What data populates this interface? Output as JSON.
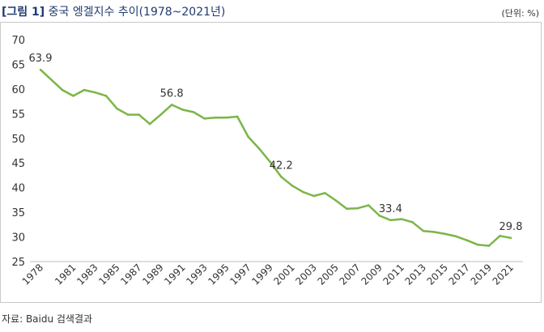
{
  "header": {
    "figure_label": "[그림 1]",
    "title": "중국 엥겔지수 추이(1978~2021년)",
    "unit": "(단위: %)"
  },
  "footer": {
    "source": "자료: Baidu 검색결과"
  },
  "colors": {
    "line": "#7ab648",
    "axis": "#bfbfbf",
    "text": "#333333",
    "title": "#1f3a70"
  },
  "chart_data": {
    "type": "line",
    "title": "",
    "xlabel": "",
    "ylabel": "",
    "ylim": [
      25,
      70
    ],
    "yticks": [
      25,
      30,
      35,
      40,
      45,
      50,
      55,
      60,
      65,
      70
    ],
    "xticks": [
      "1978",
      "1981",
      "1983",
      "1985",
      "1987",
      "1989",
      "1991",
      "1993",
      "1995",
      "1997",
      "1999",
      "2001",
      "2003",
      "2005",
      "2007",
      "2009",
      "2011",
      "2013",
      "2015",
      "2017",
      "2019",
      "2021"
    ],
    "grid": false,
    "legend": "none",
    "series": [
      {
        "values": [
          [
            1978,
            63.9
          ],
          [
            1980,
            59.8
          ],
          [
            1981,
            58.6
          ],
          [
            1982,
            59.8
          ],
          [
            1983,
            59.3
          ],
          [
            1984,
            58.6
          ],
          [
            1985,
            56.0
          ],
          [
            1986,
            54.8
          ],
          [
            1987,
            54.8
          ],
          [
            1988,
            52.9
          ],
          [
            1989,
            54.8
          ],
          [
            1990,
            56.8
          ],
          [
            1991,
            55.8
          ],
          [
            1992,
            55.3
          ],
          [
            1993,
            54.0
          ],
          [
            1994,
            54.2
          ],
          [
            1995,
            54.2
          ],
          [
            1996,
            54.4
          ],
          [
            1997,
            50.3
          ],
          [
            1998,
            47.9
          ],
          [
            1999,
            45.2
          ],
          [
            2000,
            42.2
          ],
          [
            2001,
            40.4
          ],
          [
            2002,
            39.1
          ],
          [
            2003,
            38.3
          ],
          [
            2004,
            38.9
          ],
          [
            2005,
            37.4
          ],
          [
            2006,
            35.7
          ],
          [
            2007,
            35.8
          ],
          [
            2008,
            36.4
          ],
          [
            2009,
            34.3
          ],
          [
            2010,
            33.4
          ],
          [
            2011,
            33.6
          ],
          [
            2012,
            33.0
          ],
          [
            2013,
            31.2
          ],
          [
            2014,
            31.0
          ],
          [
            2015,
            30.6
          ],
          [
            2016,
            30.1
          ],
          [
            2017,
            29.3
          ],
          [
            2018,
            28.4
          ],
          [
            2019,
            28.2
          ],
          [
            2020,
            30.2
          ],
          [
            2021,
            29.8
          ]
        ]
      }
    ],
    "annotations": [
      {
        "x": 1978,
        "y": 63.9,
        "label": "63.9"
      },
      {
        "x": 1990,
        "y": 56.8,
        "label": "56.8"
      },
      {
        "x": 2000,
        "y": 42.2,
        "label": "42.2"
      },
      {
        "x": 2010,
        "y": 33.4,
        "label": "33.4"
      },
      {
        "x": 2021,
        "y": 29.8,
        "label": "29.8"
      }
    ]
  }
}
